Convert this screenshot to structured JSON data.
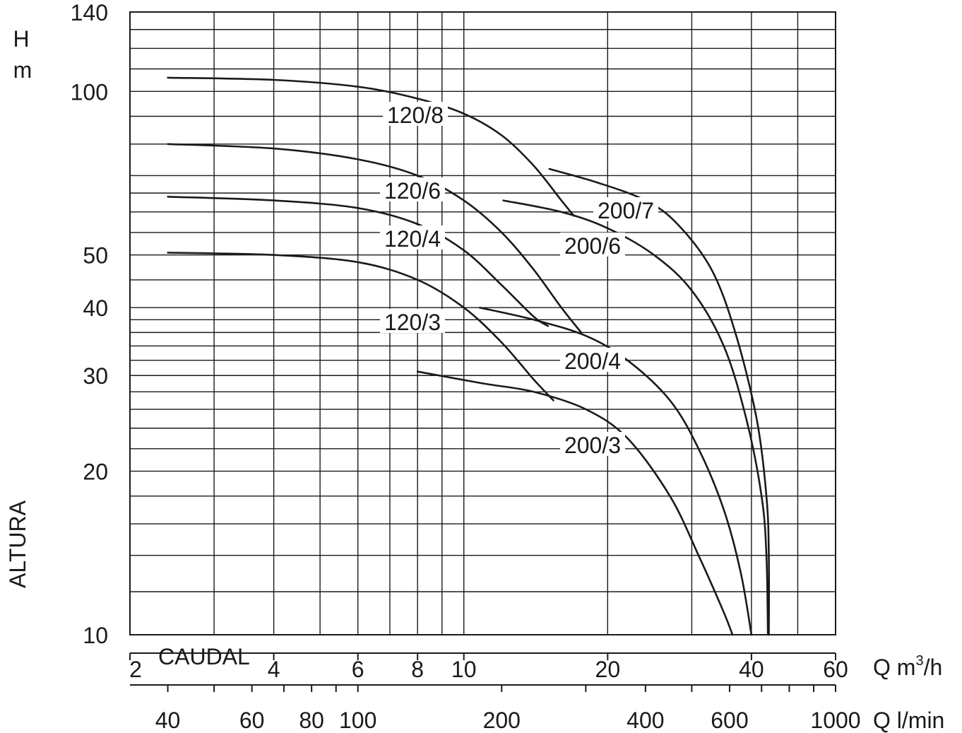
{
  "chart_data": {
    "type": "line",
    "x_scale": "log",
    "y_scale": "log",
    "xlim": [
      2,
      60
    ],
    "ylim": [
      10,
      140
    ],
    "grid": true,
    "ylabel_top": "H",
    "ylabel_unit": "m",
    "ylabel_side": "ALTURA",
    "xlabel_caudal": "CAUDAL",
    "x_axis_m3h": {
      "label_prefix": "Q m",
      "label_sup": "3",
      "label_suffix": "/h",
      "ticks": [
        2,
        4,
        6,
        8,
        10,
        20,
        40,
        60
      ],
      "tick_labels": [
        "2",
        "4",
        "6",
        "8",
        "10",
        "20",
        "40",
        "60"
      ]
    },
    "x_axis_lmin": {
      "label": "Q l/min",
      "ticks": [
        40,
        60,
        80,
        100,
        200,
        400,
        600,
        1000
      ],
      "tick_labels": [
        "40",
        "60",
        "80",
        "100",
        "200",
        "400",
        "600",
        "1000"
      ]
    },
    "y_axis": {
      "ticks": [
        10,
        20,
        30,
        40,
        50,
        100,
        140
      ],
      "tick_labels": [
        "10",
        "20",
        "30",
        "40",
        "50",
        "100",
        "140"
      ]
    },
    "x_gridlines": [
      2,
      3,
      4,
      5,
      6,
      7,
      8,
      9,
      10,
      20,
      30,
      40,
      50,
      60
    ],
    "y_gridlines": [
      10,
      12,
      14,
      16,
      18,
      20,
      22,
      24,
      26,
      28,
      30,
      32,
      34,
      36,
      38,
      40,
      45,
      50,
      55,
      60,
      65,
      70,
      80,
      90,
      100,
      110,
      120,
      130,
      140
    ],
    "series": [
      {
        "name": "120/8",
        "points": [
          [
            2.4,
            106
          ],
          [
            4,
            105
          ],
          [
            6,
            102
          ],
          [
            8,
            97
          ],
          [
            10,
            91
          ],
          [
            12,
            83
          ],
          [
            14,
            73
          ],
          [
            16,
            63
          ],
          [
            17,
            59
          ]
        ]
      },
      {
        "name": "120/6",
        "points": [
          [
            2.4,
            80
          ],
          [
            4,
            78.5
          ],
          [
            6,
            75
          ],
          [
            8,
            70
          ],
          [
            10,
            63
          ],
          [
            12,
            55
          ],
          [
            14,
            47
          ],
          [
            16,
            40
          ],
          [
            17.6,
            36
          ]
        ]
      },
      {
        "name": "120/4",
        "points": [
          [
            2.4,
            64
          ],
          [
            4,
            63
          ],
          [
            6,
            61
          ],
          [
            8,
            57
          ],
          [
            10,
            51
          ],
          [
            12,
            44
          ],
          [
            14,
            38.5
          ],
          [
            15,
            37
          ]
        ]
      },
      {
        "name": "120/3",
        "points": [
          [
            2.4,
            50.5
          ],
          [
            4,
            50
          ],
          [
            6,
            48.5
          ],
          [
            8,
            45
          ],
          [
            10,
            40
          ],
          [
            12,
            34.5
          ],
          [
            14,
            29.5
          ],
          [
            15.4,
            27
          ]
        ]
      },
      {
        "name": "200/7",
        "points": [
          [
            15.1,
            72
          ],
          [
            19,
            68
          ],
          [
            24,
            63
          ],
          [
            28,
            57
          ],
          [
            33,
            47
          ],
          [
            37,
            36
          ],
          [
            41,
            25
          ],
          [
            43,
            18
          ],
          [
            43.5,
            14
          ],
          [
            43.5,
            10
          ]
        ]
      },
      {
        "name": "200/6",
        "points": [
          [
            12.1,
            63
          ],
          [
            16,
            60
          ],
          [
            20,
            56
          ],
          [
            25,
            50
          ],
          [
            30,
            43
          ],
          [
            35,
            34
          ],
          [
            39,
            25
          ],
          [
            42,
            18
          ],
          [
            43,
            14
          ],
          [
            43.3,
            10
          ]
        ]
      },
      {
        "name": "200/4",
        "points": [
          [
            10.8,
            40
          ],
          [
            14,
            38
          ],
          [
            18,
            35.5
          ],
          [
            22,
            32
          ],
          [
            27,
            27
          ],
          [
            31,
            22
          ],
          [
            35,
            17
          ],
          [
            38,
            13
          ],
          [
            40,
            10
          ]
        ]
      },
      {
        "name": "200/3",
        "points": [
          [
            8,
            30.5
          ],
          [
            11,
            29
          ],
          [
            14,
            28
          ],
          [
            18,
            26
          ],
          [
            22,
            23
          ],
          [
            27,
            18
          ],
          [
            31,
            14
          ],
          [
            35,
            11
          ],
          [
            36.5,
            10
          ]
        ]
      }
    ],
    "curve_labels": [
      "120/8",
      "120/6",
      "120/4",
      "120/3",
      "200/7",
      "200/6",
      "200/4",
      "200/3"
    ]
  }
}
